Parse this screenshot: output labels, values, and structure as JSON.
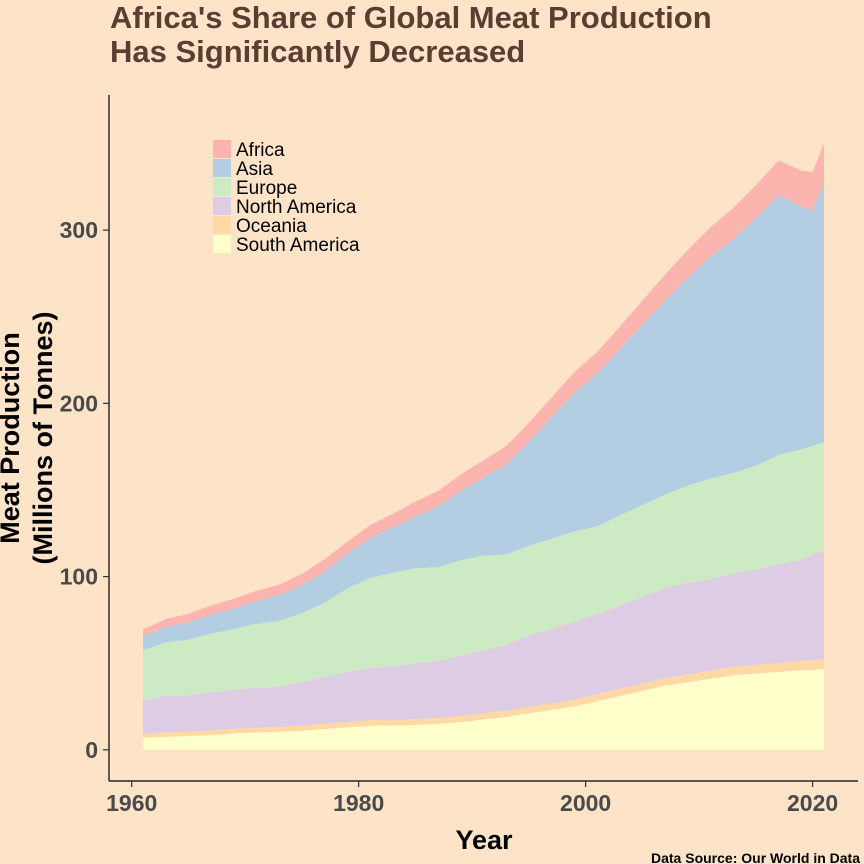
{
  "title_lines": [
    "Africa's Share of Global Meat Production",
    "Has Significantly Decreased"
  ],
  "source": "Data Source: Our World in Data",
  "chart_data": {
    "type": "area",
    "stacked": true,
    "title": "Africa's Share of Global Meat Production Has Significantly Decreased",
    "xlabel": "Year",
    "ylabel_lines": [
      "Meat Production",
      "(Millions of Tonnes)"
    ],
    "xlim": [
      1958,
      2024
    ],
    "ylim": [
      -18,
      378
    ],
    "xticks": [
      1960,
      1980,
      2000,
      2020
    ],
    "yticks": [
      0,
      100,
      200,
      300
    ],
    "legend_position": "top-left",
    "x": [
      1961,
      1963,
      1965,
      1967,
      1969,
      1971,
      1973,
      1975,
      1977,
      1979,
      1981,
      1983,
      1985,
      1987,
      1989,
      1991,
      1993,
      1995,
      1997,
      1999,
      2001,
      2003,
      2005,
      2007,
      2009,
      2011,
      2013,
      2015,
      2017,
      2019,
      2020,
      2021
    ],
    "series": [
      {
        "name": "South America",
        "color": "#ffffcc",
        "values": [
          7,
          7.5,
          8,
          8.5,
          9.5,
          10,
          10.5,
          11,
          12,
          13,
          14,
          14,
          14.5,
          15,
          16,
          17.5,
          19,
          21,
          23,
          25,
          28,
          31,
          34,
          37,
          39,
          41,
          43,
          44,
          45,
          46,
          46,
          47
        ]
      },
      {
        "name": "Oceania",
        "color": "#fed9a6",
        "values": [
          2.5,
          2.5,
          2.5,
          2.6,
          2.7,
          2.8,
          2.9,
          3,
          3,
          3.1,
          3.2,
          3.2,
          3.3,
          3.4,
          3.5,
          3.6,
          3.7,
          3.8,
          3.9,
          4,
          4.1,
          4.2,
          4.3,
          4.4,
          4.5,
          4.6,
          4.8,
          5,
          5.2,
          5.4,
          5.5,
          5.6
        ]
      },
      {
        "name": "North America",
        "color": "#decbe4",
        "values": [
          19,
          21,
          21,
          22,
          22.5,
          23,
          23,
          25,
          27,
          29,
          30,
          31,
          32,
          33,
          35,
          36,
          38,
          41,
          43,
          45,
          46,
          48,
          50,
          52,
          53,
          53,
          54,
          55,
          57,
          58,
          61,
          62
        ]
      },
      {
        "name": "Europe",
        "color": "#ccebc5",
        "values": [
          29,
          31,
          32,
          34,
          35,
          37,
          38,
          40,
          43,
          48,
          52,
          54,
          55,
          54,
          55,
          55,
          52,
          52,
          52,
          52,
          51,
          52,
          53,
          54,
          56,
          58,
          58,
          60,
          63,
          64,
          63,
          63
        ]
      },
      {
        "name": "Asia",
        "color": "#b3cde3",
        "values": [
          8,
          9,
          10,
          11,
          12,
          13,
          15,
          16,
          18,
          20,
          23,
          26,
          30,
          35,
          40,
          45,
          52,
          60,
          70,
          80,
          88,
          96,
          104,
          112,
          120,
          128,
          135,
          143,
          150,
          140,
          136,
          150
        ]
      },
      {
        "name": "Africa",
        "color": "#fbb4ae",
        "values": [
          4,
          4.5,
          5,
          5.2,
          5.5,
          6,
          6,
          6.5,
          7,
          7,
          7.5,
          8,
          8.5,
          9,
          9.5,
          10,
          10.5,
          11,
          11.5,
          12,
          12.5,
          13,
          14,
          15,
          16,
          17,
          18,
          19,
          20,
          21,
          22,
          22.5
        ]
      }
    ],
    "legend_order": [
      "Africa",
      "Asia",
      "Europe",
      "North America",
      "Oceania",
      "South America"
    ]
  }
}
